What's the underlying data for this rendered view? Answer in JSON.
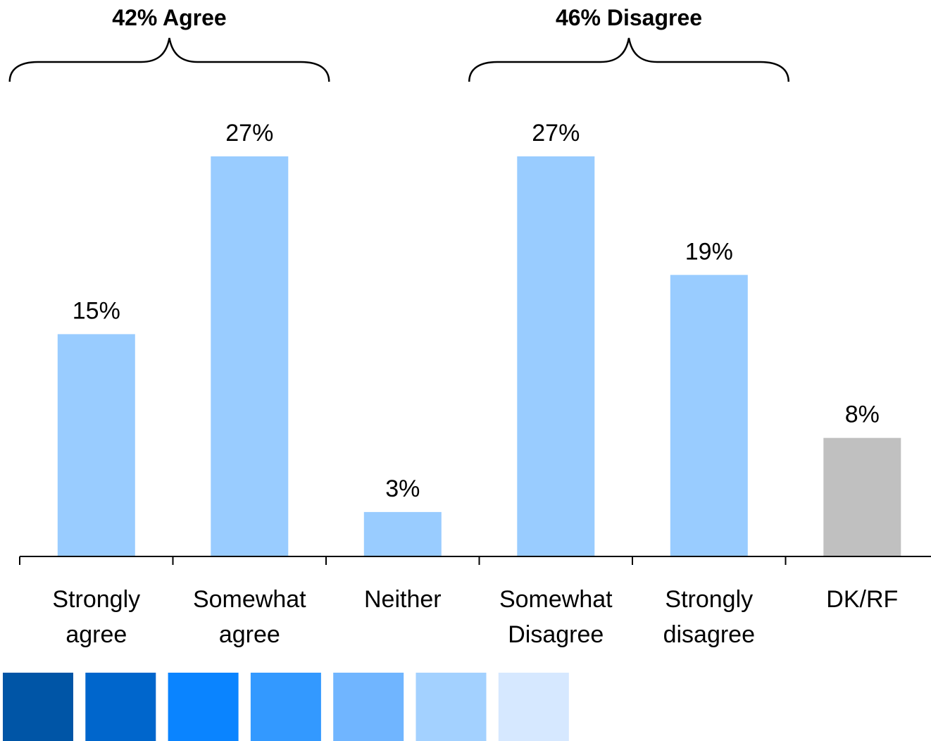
{
  "chart_data": {
    "type": "bar",
    "categories": [
      [
        "Strongly",
        "agree"
      ],
      [
        "Somewhat",
        "agree"
      ],
      [
        "Neither"
      ],
      [
        "Somewhat",
        "Disagree"
      ],
      [
        "Strongly",
        "disagree"
      ],
      [
        "DK/RF"
      ]
    ],
    "values": [
      15,
      27,
      3,
      27,
      19,
      8
    ],
    "value_labels": [
      "15%",
      "27%",
      "3%",
      "27%",
      "19%",
      "8%"
    ],
    "bar_colors": [
      "#99ccff",
      "#99ccff",
      "#99ccff",
      "#99ccff",
      "#99ccff",
      "#c0c0c0"
    ],
    "ylim": [
      0,
      27
    ],
    "grid": false,
    "groups": [
      {
        "label": "42% Agree",
        "from": 0,
        "to": 1
      },
      {
        "label": "46% Disagree",
        "from": 3,
        "to": 4
      }
    ],
    "axis_color": "#000000"
  },
  "palette_swatches": [
    "#0055a6",
    "#0066cc",
    "#0a84ff",
    "#3399ff",
    "#70b5ff",
    "#a3d1ff",
    "#d6e8ff"
  ]
}
